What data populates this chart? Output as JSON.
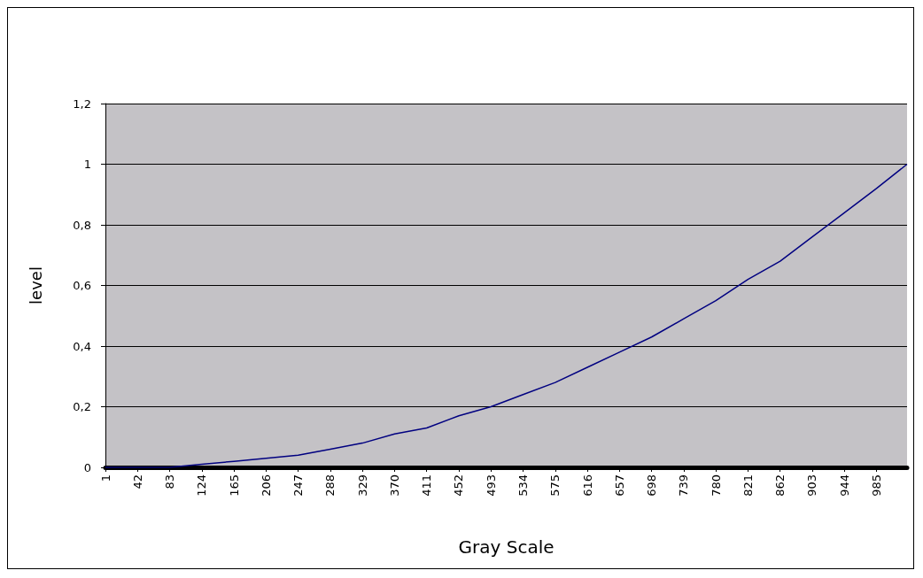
{
  "chart_data": {
    "type": "line",
    "xlabel": "Gray Scale",
    "ylabel": "level",
    "series": [
      {
        "color": "#000080",
        "x": [
          1,
          42,
          83,
          124,
          165,
          206,
          247,
          288,
          329,
          370,
          411,
          452,
          493,
          534,
          575,
          616,
          657,
          698,
          739,
          780,
          821,
          862,
          903,
          944,
          985,
          1024
        ],
        "values": [
          0,
          0,
          0,
          0.01,
          0.02,
          0.03,
          0.04,
          0.06,
          0.08,
          0.11,
          0.13,
          0.17,
          0.2,
          0.24,
          0.28,
          0.33,
          0.38,
          0.43,
          0.49,
          0.55,
          0.62,
          0.68,
          0.76,
          0.84,
          0.92,
          1
        ]
      }
    ],
    "xlim": [
      1,
      1024
    ],
    "xticks": [
      1,
      42,
      83,
      124,
      165,
      206,
      247,
      288,
      329,
      370,
      411,
      452,
      493,
      534,
      575,
      616,
      657,
      698,
      739,
      780,
      821,
      862,
      903,
      944,
      985
    ],
    "ylim": [
      0,
      1.2
    ],
    "yticks": [
      0,
      {
        "value": 0.2,
        "label": "0,2"
      },
      {
        "value": 0.4,
        "label": "0,4"
      },
      {
        "value": 0.6,
        "label": "0,6"
      },
      {
        "value": 0.8,
        "label": "0,8"
      },
      1,
      {
        "value": 1.2,
        "label": "1,2"
      }
    ],
    "grid": "y",
    "marker": "none",
    "line_style": "solid"
  }
}
